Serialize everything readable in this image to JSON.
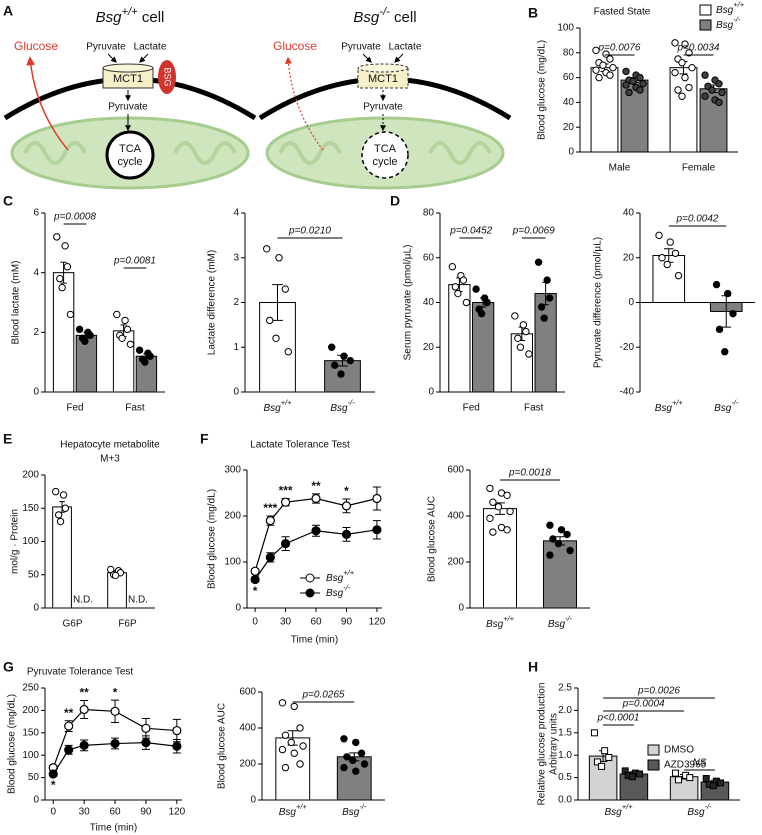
{
  "diagram": {
    "panel": "A",
    "left": {
      "title": "Bsg+/+ cell",
      "glucose": "Glucose",
      "pyruvate_out": "Pyruvate",
      "lactate": "Lactate",
      "transporter": "MCT1",
      "bsg": "BSG",
      "pyruvate_in": "Pyruvate",
      "tca": [
        "TCA",
        "cycle"
      ]
    },
    "right": {
      "title": "Bsg-/- cell",
      "glucose": "Glucose",
      "pyruvate_out": "Pyruvate",
      "lactate": "Lactate",
      "transporter": "MCT1",
      "pyruvate_in": "Pyruvate",
      "tca": [
        "TCA",
        "cycle"
      ]
    }
  },
  "chart_data": [
    {
      "panel": "B",
      "type": "bar",
      "title": "Fasted State",
      "ylabel": "Blood glucose (mg/dL)",
      "categories": [
        "Male",
        "Female"
      ],
      "ylim": [
        0,
        100
      ],
      "yticks": [
        0,
        20,
        40,
        60,
        80,
        100
      ],
      "series": [
        {
          "name": "Bsg+/+",
          "color": "#ffffff",
          "marker_color": "#ffffff",
          "values": [
            68,
            68
          ],
          "errors": [
            3,
            5
          ],
          "points": [
            [
              82,
              79,
              75,
              72,
              70,
              68,
              66,
              64,
              62,
              60
            ],
            [
              88,
              87,
              80,
              75,
              72,
              68,
              64,
              60,
              52,
              50,
              45
            ]
          ]
        },
        {
          "name": "Bsg-/-",
          "color": "#808080",
          "marker_color": "#404040",
          "values": [
            58,
            51
          ],
          "errors": [
            2,
            3
          ],
          "points": [
            [
              65,
              62,
              60,
              58,
              57,
              55,
              54,
              52,
              50,
              48
            ],
            [
              62,
              58,
              55,
              53,
              50,
              48,
              45,
              42,
              40
            ]
          ]
        }
      ],
      "comparisons": [
        "p=0.0076",
        "p=0.0034"
      ]
    },
    {
      "panel": "C",
      "type": "bar",
      "ylabel": "Blood lactate (mM)",
      "categories": [
        "Fed",
        "Fast"
      ],
      "ylim": [
        0,
        6
      ],
      "yticks": [
        0,
        2,
        4,
        6
      ],
      "series": [
        {
          "color": "#ffffff",
          "marker_color": "#ffffff",
          "values": [
            4.0,
            2.05
          ],
          "errors": [
            0.35,
            0.2
          ],
          "points": [
            [
              5.2,
              4.9,
              4.2,
              3.8,
              3.5,
              2.6
            ],
            [
              2.6,
              2.4,
              2.1,
              1.9,
              1.8,
              1.6
            ]
          ]
        },
        {
          "color": "#808080",
          "marker_color": "#000000",
          "values": [
            1.9,
            1.2
          ],
          "errors": [
            0.1,
            0.08
          ],
          "points": [
            [
              2.1,
              2.0,
              1.9,
              1.8,
              1.7
            ],
            [
              1.4,
              1.3,
              1.2,
              1.1,
              1.0
            ]
          ]
        }
      ],
      "comparisons": [
        "p=0.0008",
        "p=0.0081"
      ]
    },
    {
      "type": "bar",
      "ylabel": "Lactate difference (mM)",
      "categories": [
        "Bsg+/+",
        "Bsg-/-"
      ],
      "ylim": [
        0,
        4
      ],
      "yticks": [
        0,
        1,
        2,
        3,
        4
      ],
      "series": [
        {
          "colors": [
            "#ffffff",
            "#808080"
          ],
          "marker_colors": [
            "#ffffff",
            "#000000"
          ],
          "values": [
            2.0,
            0.7
          ],
          "errors": [
            0.4,
            0.12
          ],
          "points": [
            [
              3.2,
              3.0,
              2.3,
              1.6,
              1.2,
              0.9
            ],
            [
              1.0,
              0.8,
              0.7,
              0.6,
              0.4
            ]
          ]
        }
      ],
      "comparisons": [
        "p=0.0210"
      ]
    },
    {
      "panel": "D",
      "type": "bar",
      "ylabel": "Serum pyruvate (pmol/µL)",
      "categories": [
        "Fed",
        "Fast"
      ],
      "ylim": [
        0,
        80
      ],
      "yticks": [
        0,
        20,
        40,
        60,
        80
      ],
      "series": [
        {
          "color": "#ffffff",
          "marker_color": "#ffffff",
          "values": [
            48,
            26
          ],
          "errors": [
            3,
            3
          ],
          "points": [
            [
              56,
              52,
              50,
              47,
              44,
              40
            ],
            [
              34,
              30,
              27,
              24,
              20,
              17
            ]
          ]
        },
        {
          "color": "#808080",
          "marker_color": "#000000",
          "values": [
            40,
            44
          ],
          "errors": [
            2,
            5
          ],
          "points": [
            [
              46,
              42,
              40,
              37,
              35
            ],
            [
              58,
              50,
              42,
              38,
              33
            ]
          ]
        }
      ],
      "comparisons": [
        "p=0.0452",
        "p=0.0069"
      ]
    },
    {
      "type": "bar",
      "ylabel": "Pyruvate difference (pmol/µL)",
      "categories": [
        "Bsg+/+",
        "Bsg-/-"
      ],
      "ylim": [
        -40,
        40
      ],
      "yticks": [
        -40,
        -20,
        0,
        20,
        40
      ],
      "series": [
        {
          "colors": [
            "#ffffff",
            "#808080"
          ],
          "marker_colors": [
            "#ffffff",
            "#000000"
          ],
          "values": [
            21,
            -4
          ],
          "errors": [
            3,
            7
          ],
          "points": [
            [
              30,
              27,
              22,
              20,
              17,
              12
            ],
            [
              8,
              4,
              -5,
              -12,
              -22
            ]
          ]
        }
      ],
      "comparisons": [
        "p=0.0042"
      ]
    },
    {
      "panel": "E",
      "type": "bar",
      "title": [
        "Hepatocyte metabolite",
        "M+3"
      ],
      "ylabel": "mol/g · Protein",
      "categories": [
        "G6P",
        "F6P"
      ],
      "ylim": [
        0,
        200
      ],
      "yticks": [
        0,
        50,
        100,
        150,
        200
      ],
      "series": [
        {
          "color": "#ffffff",
          "marker_color": "#ffffff",
          "values": [
            152,
            53
          ],
          "errors": [
            8,
            3
          ],
          "points": [
            [
              175,
              170,
              150,
              140,
              130
            ],
            [
              58,
              56,
              53,
              50,
              49
            ]
          ]
        },
        {
          "values": [
            null,
            null
          ],
          "value_labels": [
            "N.D.",
            "N.D."
          ]
        }
      ]
    },
    {
      "panel": "F",
      "type": "line",
      "title": "Lactate Tolerance Test",
      "xlabel": "Time (min)",
      "ylabel": "Blood glucose (mg/dL)",
      "x": [
        0,
        15,
        30,
        60,
        90,
        120
      ],
      "xlim": [
        -8,
        125
      ],
      "xticks": [
        0,
        30,
        60,
        90,
        120
      ],
      "ylim": [
        0,
        300
      ],
      "yticks": [
        0,
        100,
        200,
        300
      ],
      "series": [
        {
          "name": "Bsg+/+",
          "marker_color": "#ffffff",
          "values": [
            80,
            190,
            230,
            238,
            222,
            238
          ],
          "errors": [
            5,
            10,
            8,
            10,
            15,
            25
          ]
        },
        {
          "name": "Bsg-/-",
          "marker_color": "#000000",
          "values": [
            62,
            110,
            140,
            168,
            160,
            170
          ],
          "errors": [
            5,
            10,
            15,
            12,
            15,
            20
          ]
        }
      ],
      "significance": [
        "*",
        "***",
        "***",
        "**",
        "*",
        null
      ]
    },
    {
      "type": "bar",
      "ylabel": "Blood glucose AUC",
      "categories": [
        "Bsg+/+",
        "Bsg-/-"
      ],
      "ylim": [
        0,
        600
      ],
      "yticks": [
        0,
        200,
        400,
        600
      ],
      "series": [
        {
          "colors": [
            "#ffffff",
            "#808080"
          ],
          "marker_colors": [
            "#ffffff",
            "#000000"
          ],
          "values": [
            432,
            292
          ],
          "errors": [
            25,
            18
          ],
          "points": [
            [
              520,
              500,
              490,
              460,
              440,
              420,
              390,
              350,
              340,
              330
            ],
            [
              360,
              340,
              320,
              300,
              280,
              250,
              230
            ]
          ]
        }
      ],
      "comparisons": [
        "p=0.0018"
      ]
    },
    {
      "panel": "G",
      "type": "line",
      "title": "Pyruvate Tolerance Test",
      "xlabel": "Time (min)",
      "ylabel": "Blood glucose (mg/dL)",
      "x": [
        0,
        15,
        30,
        60,
        90,
        120
      ],
      "xlim": [
        -8,
        125
      ],
      "xticks": [
        0,
        30,
        60,
        90,
        120
      ],
      "ylim": [
        0,
        250
      ],
      "yticks": [
        0,
        50,
        100,
        150,
        200,
        250
      ],
      "series": [
        {
          "marker_color": "#ffffff",
          "values": [
            72,
            165,
            202,
            198,
            160,
            155
          ],
          "errors": [
            5,
            12,
            20,
            25,
            22,
            25
          ]
        },
        {
          "marker_color": "#000000",
          "values": [
            58,
            112,
            122,
            126,
            128,
            120
          ],
          "errors": [
            4,
            10,
            12,
            12,
            15,
            15
          ]
        }
      ],
      "significance": [
        "*",
        "**",
        "**",
        "*",
        null,
        null
      ]
    },
    {
      "type": "bar",
      "ylabel": "Blood glucose AUC",
      "categories": [
        "Bsg+/+",
        "Bsg-/-"
      ],
      "ylim": [
        0,
        600
      ],
      "yticks": [
        0,
        200,
        400,
        600
      ],
      "series": [
        {
          "colors": [
            "#ffffff",
            "#808080"
          ],
          "marker_colors": [
            "#ffffff",
            "#000000"
          ],
          "values": [
            345,
            240
          ],
          "errors": [
            40,
            22
          ],
          "points": [
            [
              540,
              520,
              400,
              360,
              320,
              300,
              280,
              260,
              200,
              180
            ],
            [
              340,
              320,
              260,
              240,
              220,
              200,
              180,
              160
            ]
          ]
        }
      ],
      "comparisons": [
        "p=0.0265"
      ]
    },
    {
      "panel": "H",
      "type": "bar",
      "ylabel": [
        "Relative glucose production",
        "Arbitrary units"
      ],
      "categories": [
        "Bsg+/+",
        "Bsg-/-"
      ],
      "ylim": [
        0,
        2.5
      ],
      "yticks": [
        {
          "value": 0,
          "label": "0.0"
        },
        0.5,
        {
          "value": 1,
          "label": "1.0"
        },
        1.5,
        {
          "value": 2,
          "label": "2.0"
        },
        2.5
      ],
      "series": [
        {
          "name": "DMSO",
          "color": "#d3d3d3",
          "marker_color": "#ffffff",
          "marker": "square",
          "values": [
            0.98,
            0.52
          ],
          "errors": [
            0.12,
            0.05
          ],
          "points": [
            [
              1.5,
              1.1,
              0.95,
              0.85,
              0.75
            ],
            [
              0.6,
              0.55,
              0.5,
              0.45
            ]
          ]
        },
        {
          "name": "AZD3965",
          "color": "#595959",
          "marker_color": "#262626",
          "marker": "square",
          "values": [
            0.58,
            0.4
          ],
          "errors": [
            0.05,
            0.04
          ],
          "points": [
            [
              0.65,
              0.6,
              0.58,
              0.55,
              0.52
            ],
            [
              0.48,
              0.42,
              0.38,
              0.35,
              0.32
            ]
          ]
        }
      ],
      "comparisons": [
        "p=0.0026",
        "p=0.0004",
        "p<0.0001",
        "NS"
      ]
    }
  ]
}
